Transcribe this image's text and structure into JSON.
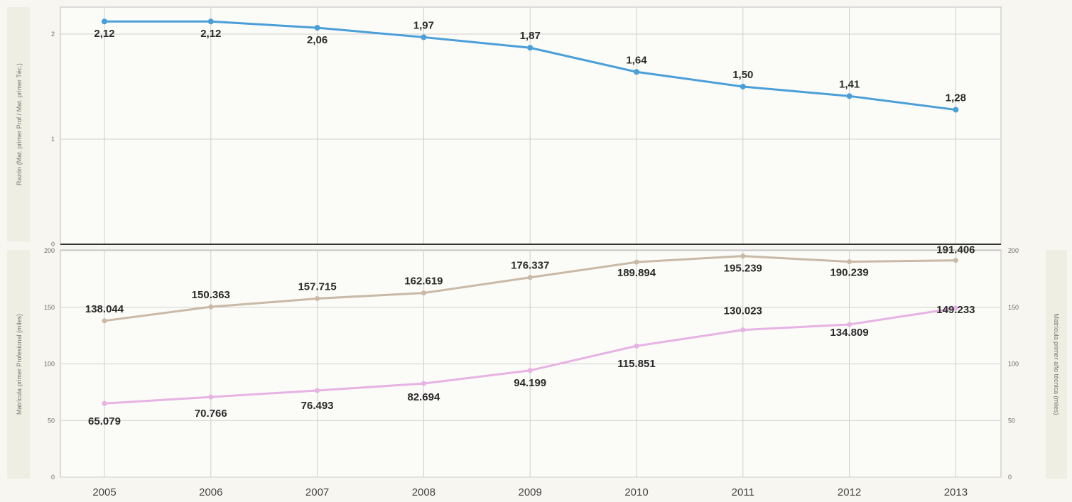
{
  "chart_data": [
    {
      "type": "line",
      "ylabel": "Razón (Mat. primer Prof / Mat. primer Téc.)",
      "x": [
        "2005",
        "2006",
        "2007",
        "2008",
        "2009",
        "2010",
        "2011",
        "2012",
        "2013"
      ],
      "yticks": [
        "0",
        "1",
        "2"
      ],
      "ylim": [
        0,
        2.25
      ],
      "grid": true,
      "series": [
        {
          "color": "#4a9fd8",
          "values": [
            2.12,
            2.12,
            2.06,
            1.97,
            1.87,
            1.64,
            1.5,
            1.41,
            1.28
          ],
          "labels": [
            "2,12",
            "2,12",
            "2,06",
            "1,97",
            "1,87",
            "1,64",
            "1,50",
            "1,41",
            "1,28"
          ]
        }
      ]
    },
    {
      "type": "line",
      "ylabel": "Matrícula primer Profesional (miles)",
      "y2label": "Matrícula primer año técnica (miles)",
      "x": [
        "2005",
        "2006",
        "2007",
        "2008",
        "2009",
        "2010",
        "2011",
        "2012",
        "2013"
      ],
      "yticks": [
        "0",
        "50",
        "100",
        "150",
        "200"
      ],
      "y2ticks": [
        "0",
        "50",
        "100",
        "150",
        "200"
      ],
      "ylim": [
        0,
        200
      ],
      "grid": true,
      "series": [
        {
          "color": "#c9b9a6",
          "values": [
            138.044,
            150.363,
            157.715,
            162.619,
            176.337,
            189.894,
            195.239,
            190.239,
            191.406
          ],
          "labels": [
            "138.044",
            "150.363",
            "157.715",
            "162.619",
            "176.337",
            "189.894",
            "195.239",
            "190.239",
            "191.406"
          ]
        },
        {
          "color": "#e6b3e3",
          "values": [
            65.079,
            70.766,
            76.493,
            82.694,
            94.199,
            115.851,
            130.023,
            134.809,
            149.233
          ],
          "labels": [
            "65.079",
            "70.766",
            "76.493",
            "82.694",
            "94.199",
            "115.851",
            "130.023",
            "134.809",
            "149.233"
          ]
        }
      ]
    }
  ]
}
